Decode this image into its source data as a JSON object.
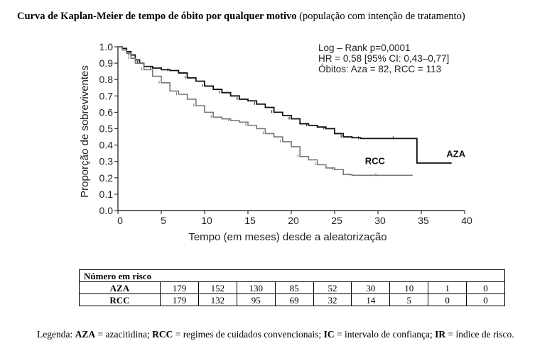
{
  "title": {
    "bold": "Curva de Kaplan-Meier de tempo de óbito por qualquer motivo",
    "normal": "(população com intenção de tratamento)"
  },
  "chart_data": {
    "type": "line",
    "xlabel": "Tempo (em meses) desde a aleatorização",
    "ylabel": "Proporção de sobreviventes",
    "xlim": [
      0,
      40
    ],
    "ylim": [
      0,
      1.0
    ],
    "x_ticks": [
      "0",
      "5",
      "10",
      "15",
      "20",
      "25",
      "30",
      "35",
      "40"
    ],
    "y_ticks": [
      "0.0",
      "0.1",
      "0.2",
      "0.3",
      "0.4",
      "0.5",
      "0.6",
      "0.7",
      "0.8",
      "0.9",
      "1.0"
    ],
    "annotations": [
      "Log – Rank p=0,0001",
      "HR = 0,58 [95% CI: 0,43–0,77]",
      "Óbitos: Aza = 82, RCC = 113"
    ],
    "series": [
      {
        "name": "AZA",
        "color": "#111111",
        "points": [
          [
            0,
            1.0
          ],
          [
            0.5,
            0.99
          ],
          [
            1,
            0.97
          ],
          [
            1.5,
            0.95
          ],
          [
            2,
            0.92
          ],
          [
            2.5,
            0.9
          ],
          [
            3,
            0.88
          ],
          [
            4,
            0.87
          ],
          [
            5,
            0.86
          ],
          [
            6,
            0.855
          ],
          [
            7,
            0.84
          ],
          [
            8,
            0.81
          ],
          [
            9,
            0.79
          ],
          [
            10,
            0.76
          ],
          [
            11,
            0.74
          ],
          [
            12,
            0.72
          ],
          [
            13,
            0.7
          ],
          [
            14,
            0.68
          ],
          [
            15,
            0.67
          ],
          [
            16,
            0.65
          ],
          [
            17,
            0.63
          ],
          [
            18,
            0.6
          ],
          [
            19,
            0.58
          ],
          [
            20,
            0.56
          ],
          [
            21,
            0.53
          ],
          [
            22,
            0.52
          ],
          [
            23,
            0.51
          ],
          [
            24,
            0.5
          ],
          [
            25,
            0.47
          ],
          [
            26,
            0.45
          ],
          [
            27,
            0.445
          ],
          [
            28,
            0.44
          ],
          [
            30,
            0.44
          ],
          [
            32,
            0.44
          ],
          [
            34,
            0.44
          ],
          [
            34.5,
            0.44
          ],
          [
            34.5,
            0.29
          ],
          [
            36,
            0.29
          ],
          [
            38.5,
            0.29
          ]
        ]
      },
      {
        "name": "RCC",
        "color": "#777777",
        "points": [
          [
            0,
            1.0
          ],
          [
            0.5,
            0.98
          ],
          [
            1,
            0.96
          ],
          [
            1.5,
            0.93
          ],
          [
            2,
            0.9
          ],
          [
            3,
            0.86
          ],
          [
            4,
            0.82
          ],
          [
            5,
            0.78
          ],
          [
            6,
            0.73
          ],
          [
            7,
            0.71
          ],
          [
            8,
            0.68
          ],
          [
            9,
            0.64
          ],
          [
            10,
            0.6
          ],
          [
            11,
            0.57
          ],
          [
            12,
            0.56
          ],
          [
            13,
            0.55
          ],
          [
            14,
            0.54
          ],
          [
            15,
            0.52
          ],
          [
            16,
            0.5
          ],
          [
            17,
            0.47
          ],
          [
            18,
            0.45
          ],
          [
            19,
            0.42
          ],
          [
            20,
            0.39
          ],
          [
            21,
            0.33
          ],
          [
            22,
            0.31
          ],
          [
            23,
            0.28
          ],
          [
            24,
            0.26
          ],
          [
            25,
            0.25
          ],
          [
            26,
            0.22
          ],
          [
            27,
            0.215
          ],
          [
            28,
            0.215
          ],
          [
            30,
            0.215
          ],
          [
            32,
            0.215
          ],
          [
            34,
            0.215
          ]
        ]
      }
    ]
  },
  "risk_table": {
    "header": "Número em risco",
    "rows": [
      {
        "label": "AZA",
        "values": [
          "179",
          "152",
          "130",
          "85",
          "52",
          "30",
          "10",
          "1",
          "0"
        ]
      },
      {
        "label": "RCC",
        "values": [
          "179",
          "132",
          "95",
          "69",
          "32",
          "14",
          "5",
          "0",
          "0"
        ]
      }
    ]
  },
  "legend": {
    "prefix": "Legenda:",
    "items": [
      {
        "abbr": "AZA",
        "text": "= azacitidina;"
      },
      {
        "abbr": "RCC",
        "text": "= regimes de cuidados convencionais;"
      },
      {
        "abbr": "IC",
        "text": "= intervalo de confiança;"
      },
      {
        "abbr": "IR",
        "text": "= índice de risco."
      }
    ]
  }
}
